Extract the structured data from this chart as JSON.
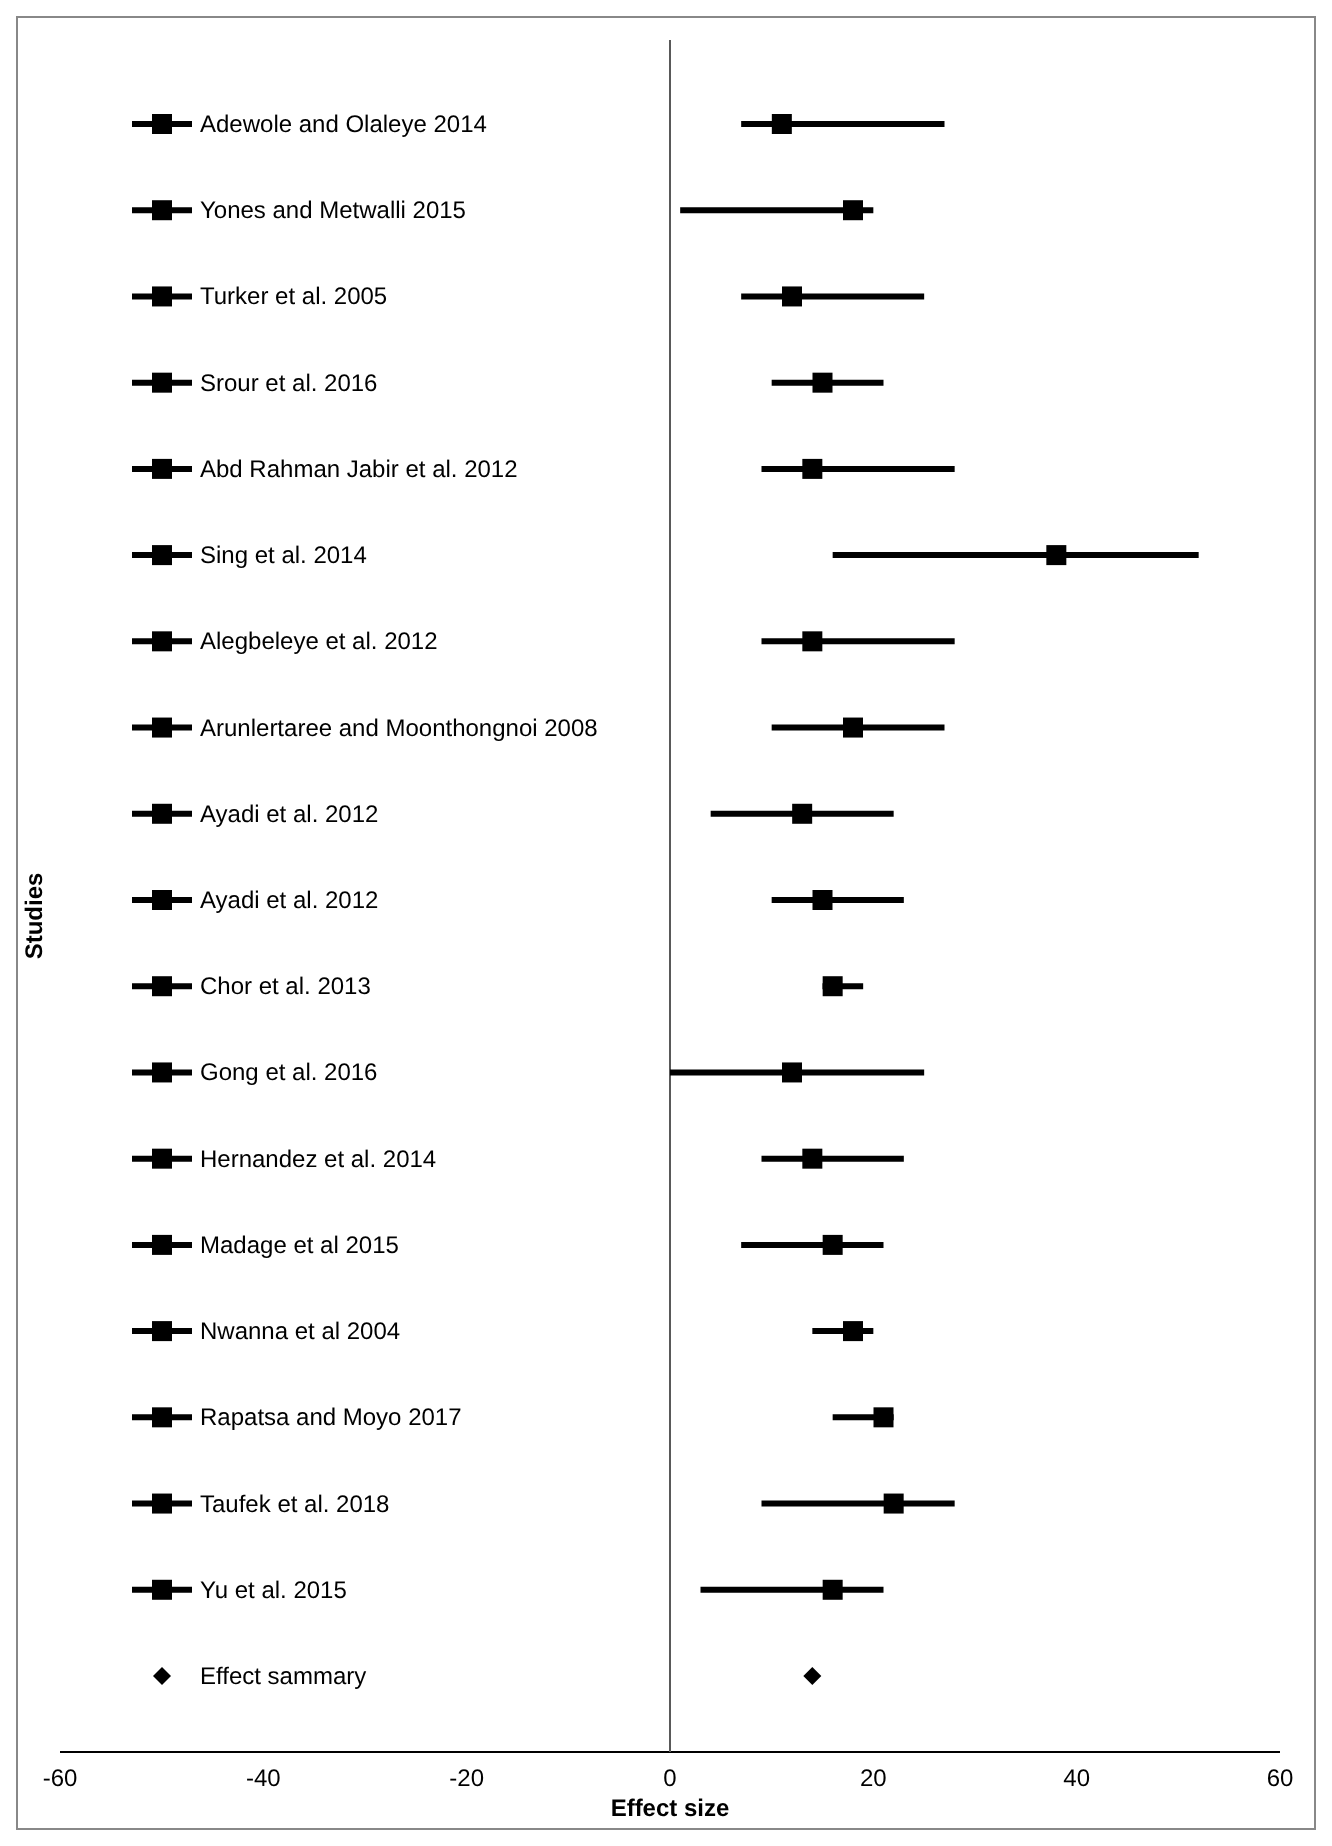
{
  "chart_data": {
    "type": "scatter",
    "orientation": "horizontal",
    "xlabel": "Effect size",
    "ylabel": "Studies",
    "legend": "left",
    "tick_labels": "x",
    "ref_lines": [
      {
        "axis": "x",
        "value": 0,
        "color": "#595959"
      }
    ],
    "categories": [
      null,
      null,
      null,
      null,
      null,
      null,
      null,
      null,
      null,
      null,
      null,
      null,
      null,
      null,
      null,
      null,
      null,
      null,
      null
    ],
    "xlim": [
      -60,
      60
    ],
    "xticks": [
      -60,
      -40,
      -20,
      0,
      20,
      40,
      60
    ],
    "series": [
      {
        "name": "Adewole and Olaleye 2014",
        "color": "#000000",
        "marker": "square",
        "values": [
          11,
          null,
          null,
          null,
          null,
          null,
          null,
          null,
          null,
          null,
          null,
          null,
          null,
          null,
          null,
          null,
          null,
          null,
          null
        ],
        "errors": [
          [
            7,
            27
          ],
          null,
          null,
          null,
          null,
          null,
          null,
          null,
          null,
          null,
          null,
          null,
          null,
          null,
          null,
          null,
          null,
          null,
          null
        ]
      },
      {
        "name": "Yones and Metwalli 2015",
        "color": "#000000",
        "marker": "square",
        "values": [
          null,
          18,
          null,
          null,
          null,
          null,
          null,
          null,
          null,
          null,
          null,
          null,
          null,
          null,
          null,
          null,
          null,
          null,
          null
        ],
        "errors": [
          null,
          [
            1,
            20
          ],
          null,
          null,
          null,
          null,
          null,
          null,
          null,
          null,
          null,
          null,
          null,
          null,
          null,
          null,
          null,
          null,
          null
        ]
      },
      {
        "name": "Turker et al. 2005",
        "color": "#000000",
        "marker": "square",
        "values": [
          null,
          null,
          12,
          null,
          null,
          null,
          null,
          null,
          null,
          null,
          null,
          null,
          null,
          null,
          null,
          null,
          null,
          null,
          null
        ],
        "errors": [
          null,
          null,
          [
            7,
            25
          ],
          null,
          null,
          null,
          null,
          null,
          null,
          null,
          null,
          null,
          null,
          null,
          null,
          null,
          null,
          null,
          null
        ]
      },
      {
        "name": "Srour et al. 2016",
        "color": "#000000",
        "marker": "square",
        "values": [
          null,
          null,
          null,
          15,
          null,
          null,
          null,
          null,
          null,
          null,
          null,
          null,
          null,
          null,
          null,
          null,
          null,
          null,
          null
        ],
        "errors": [
          null,
          null,
          null,
          [
            10,
            21
          ],
          null,
          null,
          null,
          null,
          null,
          null,
          null,
          null,
          null,
          null,
          null,
          null,
          null,
          null,
          null
        ]
      },
      {
        "name": "Abd Rahman Jabir et al. 2012",
        "color": "#000000",
        "marker": "square",
        "values": [
          null,
          null,
          null,
          null,
          14,
          null,
          null,
          null,
          null,
          null,
          null,
          null,
          null,
          null,
          null,
          null,
          null,
          null,
          null
        ],
        "errors": [
          null,
          null,
          null,
          null,
          [
            9,
            28
          ],
          null,
          null,
          null,
          null,
          null,
          null,
          null,
          null,
          null,
          null,
          null,
          null,
          null,
          null
        ]
      },
      {
        "name": "Sing et al. 2014",
        "color": "#000000",
        "marker": "square",
        "values": [
          null,
          null,
          null,
          null,
          null,
          38,
          null,
          null,
          null,
          null,
          null,
          null,
          null,
          null,
          null,
          null,
          null,
          null,
          null
        ],
        "errors": [
          null,
          null,
          null,
          null,
          null,
          [
            16,
            52
          ],
          null,
          null,
          null,
          null,
          null,
          null,
          null,
          null,
          null,
          null,
          null,
          null,
          null
        ]
      },
      {
        "name": "Alegbeleye et al. 2012",
        "color": "#000000",
        "marker": "square",
        "values": [
          null,
          null,
          null,
          null,
          null,
          null,
          14,
          null,
          null,
          null,
          null,
          null,
          null,
          null,
          null,
          null,
          null,
          null,
          null
        ],
        "errors": [
          null,
          null,
          null,
          null,
          null,
          null,
          [
            9,
            28
          ],
          null,
          null,
          null,
          null,
          null,
          null,
          null,
          null,
          null,
          null,
          null,
          null
        ]
      },
      {
        "name": "Arunlertaree and Moonthongnoi 2008",
        "color": "#000000",
        "marker": "square",
        "values": [
          null,
          null,
          null,
          null,
          null,
          null,
          null,
          18,
          null,
          null,
          null,
          null,
          null,
          null,
          null,
          null,
          null,
          null,
          null
        ],
        "errors": [
          null,
          null,
          null,
          null,
          null,
          null,
          null,
          [
            10,
            27
          ],
          null,
          null,
          null,
          null,
          null,
          null,
          null,
          null,
          null,
          null,
          null
        ]
      },
      {
        "name": "Ayadi et al. 2012",
        "color": "#000000",
        "marker": "square",
        "values": [
          null,
          null,
          null,
          null,
          null,
          null,
          null,
          null,
          13,
          null,
          null,
          null,
          null,
          null,
          null,
          null,
          null,
          null,
          null
        ],
        "errors": [
          null,
          null,
          null,
          null,
          null,
          null,
          null,
          null,
          [
            4,
            22
          ],
          null,
          null,
          null,
          null,
          null,
          null,
          null,
          null,
          null,
          null
        ]
      },
      {
        "name": "Ayadi et al. 2012",
        "color": "#000000",
        "marker": "square",
        "values": [
          null,
          null,
          null,
          null,
          null,
          null,
          null,
          null,
          null,
          15,
          null,
          null,
          null,
          null,
          null,
          null,
          null,
          null,
          null
        ],
        "errors": [
          null,
          null,
          null,
          null,
          null,
          null,
          null,
          null,
          null,
          [
            10,
            23
          ],
          null,
          null,
          null,
          null,
          null,
          null,
          null,
          null,
          null
        ]
      },
      {
        "name": "Chor et al. 2013",
        "color": "#000000",
        "marker": "square",
        "values": [
          null,
          null,
          null,
          null,
          null,
          null,
          null,
          null,
          null,
          null,
          16,
          null,
          null,
          null,
          null,
          null,
          null,
          null,
          null
        ],
        "errors": [
          null,
          null,
          null,
          null,
          null,
          null,
          null,
          null,
          null,
          null,
          [
            15,
            19
          ],
          null,
          null,
          null,
          null,
          null,
          null,
          null,
          null
        ]
      },
      {
        "name": "Gong et al. 2016",
        "color": "#000000",
        "marker": "square",
        "values": [
          null,
          null,
          null,
          null,
          null,
          null,
          null,
          null,
          null,
          null,
          null,
          12,
          null,
          null,
          null,
          null,
          null,
          null,
          null
        ],
        "errors": [
          null,
          null,
          null,
          null,
          null,
          null,
          null,
          null,
          null,
          null,
          null,
          [
            0,
            25
          ],
          null,
          null,
          null,
          null,
          null,
          null,
          null
        ]
      },
      {
        "name": "Hernandez et al. 2014",
        "color": "#000000",
        "marker": "square",
        "values": [
          null,
          null,
          null,
          null,
          null,
          null,
          null,
          null,
          null,
          null,
          null,
          null,
          14,
          null,
          null,
          null,
          null,
          null,
          null
        ],
        "errors": [
          null,
          null,
          null,
          null,
          null,
          null,
          null,
          null,
          null,
          null,
          null,
          null,
          [
            9,
            23
          ],
          null,
          null,
          null,
          null,
          null,
          null
        ]
      },
      {
        "name": "Madage et al 2015",
        "color": "#000000",
        "marker": "square",
        "values": [
          null,
          null,
          null,
          null,
          null,
          null,
          null,
          null,
          null,
          null,
          null,
          null,
          null,
          16,
          null,
          null,
          null,
          null,
          null
        ],
        "errors": [
          null,
          null,
          null,
          null,
          null,
          null,
          null,
          null,
          null,
          null,
          null,
          null,
          null,
          [
            7,
            21
          ],
          null,
          null,
          null,
          null,
          null
        ]
      },
      {
        "name": "Nwanna et al 2004",
        "color": "#000000",
        "marker": "square",
        "values": [
          null,
          null,
          null,
          null,
          null,
          null,
          null,
          null,
          null,
          null,
          null,
          null,
          null,
          null,
          18,
          null,
          null,
          null,
          null
        ],
        "errors": [
          null,
          null,
          null,
          null,
          null,
          null,
          null,
          null,
          null,
          null,
          null,
          null,
          null,
          null,
          [
            14,
            20
          ],
          null,
          null,
          null,
          null
        ]
      },
      {
        "name": "Rapatsa and Moyo 2017",
        "color": "#000000",
        "marker": "square",
        "values": [
          null,
          null,
          null,
          null,
          null,
          null,
          null,
          null,
          null,
          null,
          null,
          null,
          null,
          null,
          null,
          21,
          null,
          null,
          null
        ],
        "errors": [
          null,
          null,
          null,
          null,
          null,
          null,
          null,
          null,
          null,
          null,
          null,
          null,
          null,
          null,
          null,
          [
            16,
            22
          ],
          null,
          null,
          null
        ]
      },
      {
        "name": "Taufek et al. 2018",
        "color": "#000000",
        "marker": "square",
        "values": [
          null,
          null,
          null,
          null,
          null,
          null,
          null,
          null,
          null,
          null,
          null,
          null,
          null,
          null,
          null,
          null,
          22,
          null,
          null
        ],
        "errors": [
          null,
          null,
          null,
          null,
          null,
          null,
          null,
          null,
          null,
          null,
          null,
          null,
          null,
          null,
          null,
          null,
          [
            9,
            28
          ],
          null,
          null
        ]
      },
      {
        "name": "Yu et al. 2015",
        "color": "#000000",
        "marker": "square",
        "values": [
          null,
          null,
          null,
          null,
          null,
          null,
          null,
          null,
          null,
          null,
          null,
          null,
          null,
          null,
          null,
          null,
          null,
          16,
          null
        ],
        "errors": [
          null,
          null,
          null,
          null,
          null,
          null,
          null,
          null,
          null,
          null,
          null,
          null,
          null,
          null,
          null,
          null,
          null,
          [
            3,
            21
          ],
          null
        ]
      },
      {
        "name": "Effect sammary",
        "color": "#000000",
        "marker": "diamond",
        "values": [
          null,
          null,
          null,
          null,
          null,
          null,
          null,
          null,
          null,
          null,
          null,
          null,
          null,
          null,
          null,
          null,
          null,
          null,
          14
        ]
      }
    ]
  }
}
